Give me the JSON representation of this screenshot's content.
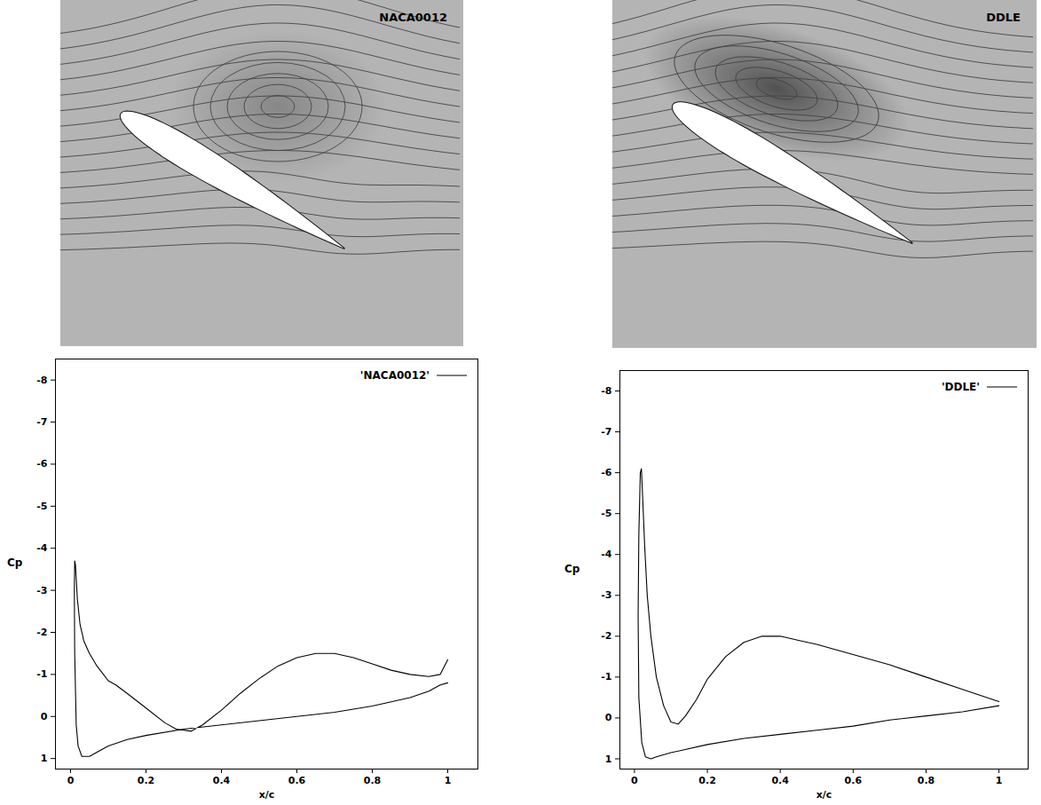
{
  "chart_data": [
    {
      "type": "line",
      "x_label": "x/c",
      "y_label": "Cp",
      "xlim": [
        -0.04,
        1.08
      ],
      "ylim": [
        1.25,
        -8.5
      ],
      "xticks": [
        0,
        0.2,
        0.4,
        0.6,
        0.8,
        1
      ],
      "yticks": [
        -8,
        -7,
        -6,
        -5,
        -4,
        -3,
        -2,
        -1,
        0,
        1
      ],
      "grid": false,
      "legend": "top-right",
      "series": [
        {
          "name": "'NACA0012'",
          "color": "#000000",
          "line_style": "solid",
          "x": [
            1.0,
            0.98,
            0.95,
            0.9,
            0.85,
            0.8,
            0.75,
            0.7,
            0.65,
            0.6,
            0.55,
            0.5,
            0.45,
            0.4,
            0.35,
            0.32,
            0.28,
            0.25,
            0.2,
            0.15,
            0.12,
            0.1,
            0.07,
            0.05,
            0.035,
            0.025,
            0.018,
            0.013,
            0.011,
            0.01,
            0.011,
            0.015,
            0.02,
            0.03,
            0.05,
            0.07,
            0.1,
            0.15,
            0.2,
            0.3,
            0.4,
            0.5,
            0.6,
            0.7,
            0.8,
            0.9,
            0.95,
            0.98,
            1.0
          ],
          "values": [
            -1.35,
            -1.0,
            -0.95,
            -1.0,
            -1.1,
            -1.25,
            -1.4,
            -1.5,
            -1.5,
            -1.4,
            -1.2,
            -0.9,
            -0.55,
            -0.15,
            0.2,
            0.35,
            0.3,
            0.15,
            -0.2,
            -0.55,
            -0.75,
            -0.85,
            -1.2,
            -1.5,
            -1.8,
            -2.2,
            -2.8,
            -3.6,
            -3.7,
            -3.0,
            -1.5,
            0.2,
            0.7,
            0.95,
            0.95,
            0.85,
            0.7,
            0.55,
            0.45,
            0.3,
            0.2,
            0.1,
            0.0,
            -0.1,
            -0.25,
            -0.45,
            -0.6,
            -0.75,
            -0.8
          ]
        }
      ]
    },
    {
      "type": "line",
      "x_label": "x/c",
      "y_label": "Cp",
      "xlim": [
        -0.04,
        1.08
      ],
      "ylim": [
        1.25,
        -8.5
      ],
      "xticks": [
        0,
        0.2,
        0.4,
        0.6,
        0.8,
        1
      ],
      "yticks": [
        -8,
        -7,
        -6,
        -5,
        -4,
        -3,
        -2,
        -1,
        0,
        1
      ],
      "grid": false,
      "legend": "top-right",
      "series": [
        {
          "name": "'DDLE'",
          "color": "#000000",
          "line_style": "solid",
          "x": [
            1.0,
            0.9,
            0.8,
            0.7,
            0.6,
            0.5,
            0.45,
            0.4,
            0.35,
            0.3,
            0.25,
            0.2,
            0.17,
            0.14,
            0.12,
            0.1,
            0.08,
            0.06,
            0.045,
            0.035,
            0.028,
            0.022,
            0.019,
            0.016,
            0.012,
            0.01,
            0.012,
            0.02,
            0.03,
            0.045,
            0.06,
            0.1,
            0.2,
            0.3,
            0.4,
            0.5,
            0.6,
            0.7,
            0.8,
            0.9,
            1.0
          ],
          "values": [
            -0.4,
            -0.7,
            -1.0,
            -1.3,
            -1.55,
            -1.8,
            -1.9,
            -2.0,
            -2.0,
            -1.85,
            -1.5,
            -0.95,
            -0.45,
            -0.05,
            0.15,
            0.1,
            -0.3,
            -1.0,
            -2.0,
            -3.0,
            -4.2,
            -5.5,
            -6.1,
            -6.0,
            -4.5,
            -2.5,
            -0.5,
            0.6,
            0.95,
            1.0,
            0.95,
            0.85,
            0.65,
            0.5,
            0.4,
            0.3,
            0.2,
            0.05,
            -0.05,
            -0.15,
            -0.3
          ]
        }
      ]
    }
  ],
  "images": [
    {
      "title": "NACA0012"
    },
    {
      "title": "DDLE"
    }
  ]
}
